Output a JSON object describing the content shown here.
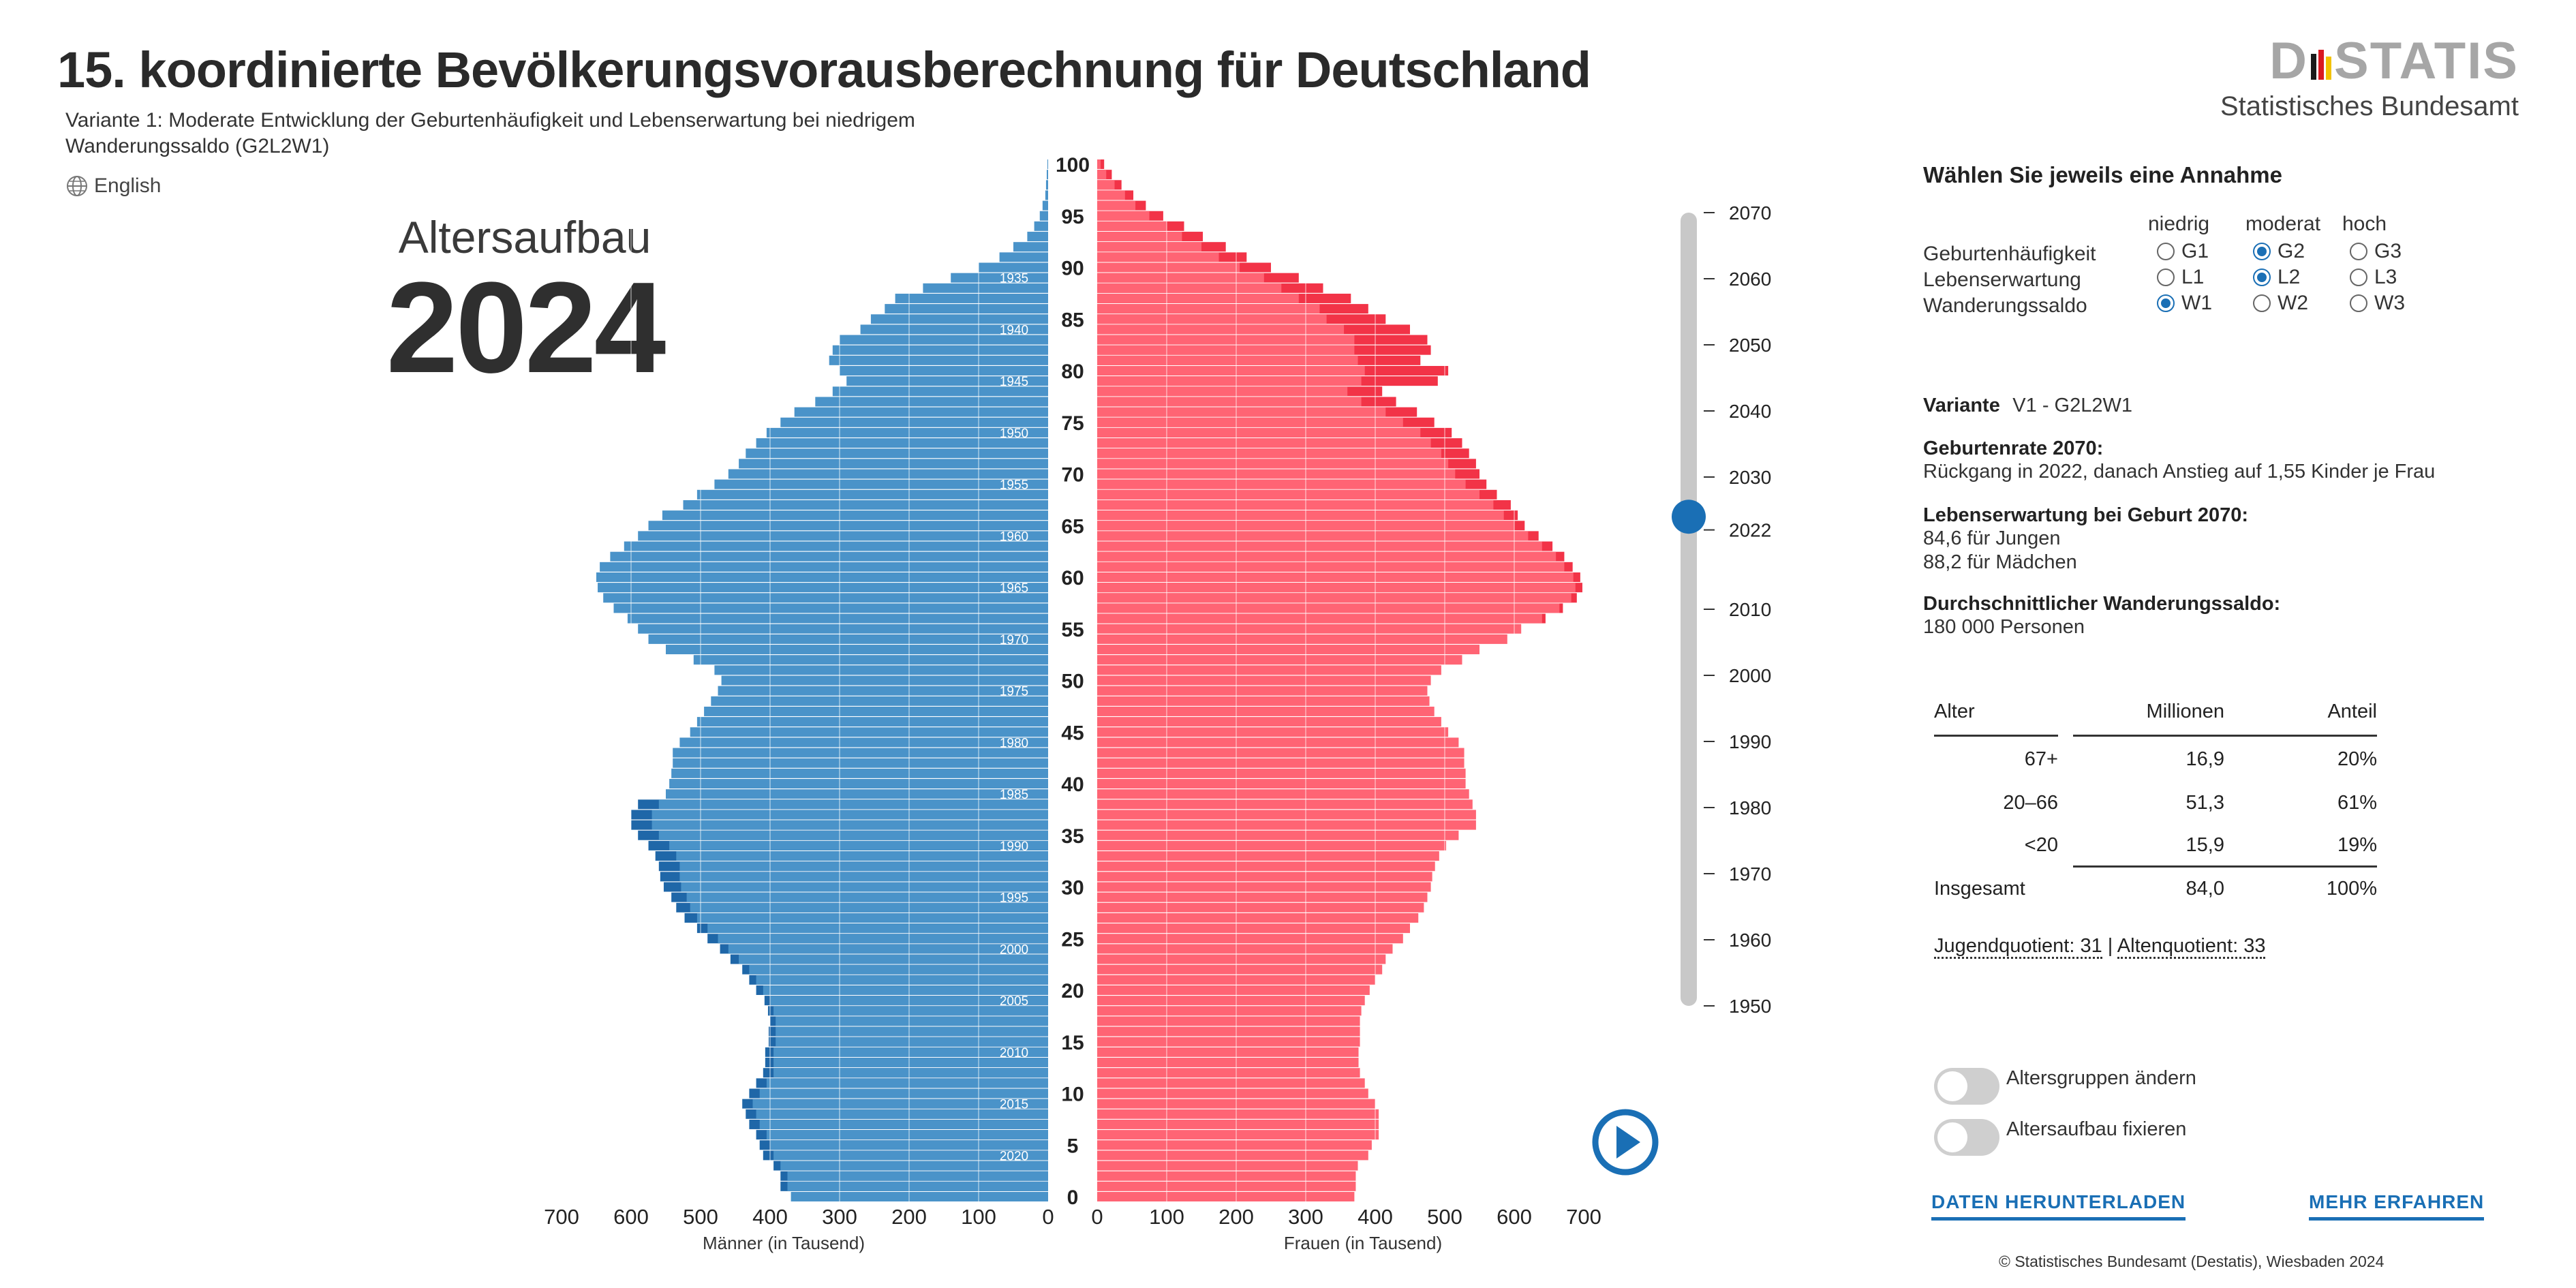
{
  "title": "15. koordinierte Bevölkerungsvorausberechnung für Deutschland",
  "subtitle": "Variante 1: Moderate Entwicklung der Geburtenhäufigkeit und Lebenserwartung bei niedrigem Wanderungssaldo (G2L2W1)",
  "language_link": "English",
  "logo": {
    "text_left": "D",
    "text_right": "STATIS",
    "subtitle": "Statistisches Bundesamt"
  },
  "heading": {
    "label": "Altersaufbau",
    "year": "2024"
  },
  "chart_data": {
    "type": "population-pyramid",
    "year": 2024,
    "x_unit": "Tausend",
    "xlim": [
      0,
      700
    ],
    "x_ticks": [
      700,
      600,
      500,
      400,
      300,
      200,
      100,
      0
    ],
    "x_tick_labels_left": [
      "700",
      "600",
      "500",
      "400",
      "300",
      "200",
      "100",
      "0"
    ],
    "x_tick_labels_right": [
      "0",
      "100",
      "200",
      "300",
      "400",
      "500",
      "600",
      "700"
    ],
    "age_ticks": [
      0,
      5,
      10,
      15,
      20,
      25,
      30,
      35,
      40,
      45,
      50,
      55,
      60,
      65,
      70,
      75,
      80,
      85,
      90,
      95,
      100
    ],
    "age_tick_labels": [
      "0",
      "5",
      "10",
      "15",
      "20",
      "25",
      "30",
      "35",
      "40",
      "45",
      "50",
      "55",
      "60",
      "65",
      "70",
      "75",
      "80",
      "85",
      "90",
      "95",
      "100"
    ],
    "cohort_labels": [
      {
        "age": 4,
        "year": "2020"
      },
      {
        "age": 9,
        "year": "2015"
      },
      {
        "age": 14,
        "year": "2010"
      },
      {
        "age": 19,
        "year": "2005"
      },
      {
        "age": 24,
        "year": "2000"
      },
      {
        "age": 29,
        "year": "1995"
      },
      {
        "age": 34,
        "year": "1990"
      },
      {
        "age": 39,
        "year": "1985"
      },
      {
        "age": 44,
        "year": "1980"
      },
      {
        "age": 49,
        "year": "1975"
      },
      {
        "age": 54,
        "year": "1970"
      },
      {
        "age": 59,
        "year": "1965"
      },
      {
        "age": 64,
        "year": "1960"
      },
      {
        "age": 69,
        "year": "1955"
      },
      {
        "age": 74,
        "year": "1950"
      },
      {
        "age": 79,
        "year": "1945"
      },
      {
        "age": 84,
        "year": "1940"
      },
      {
        "age": 89,
        "year": "1935"
      }
    ],
    "x_labels": {
      "men": "Männer (in Tausend)",
      "women": "Frauen (in Tausend)"
    },
    "ages": [
      0,
      1,
      2,
      3,
      4,
      5,
      6,
      7,
      8,
      9,
      10,
      11,
      12,
      13,
      14,
      15,
      16,
      17,
      18,
      19,
      20,
      21,
      22,
      23,
      24,
      25,
      26,
      27,
      28,
      29,
      30,
      31,
      32,
      33,
      34,
      35,
      36,
      37,
      38,
      39,
      40,
      41,
      42,
      43,
      44,
      45,
      46,
      47,
      48,
      49,
      50,
      51,
      52,
      53,
      54,
      55,
      56,
      57,
      58,
      59,
      60,
      61,
      62,
      63,
      64,
      65,
      66,
      67,
      68,
      69,
      70,
      71,
      72,
      73,
      74,
      75,
      76,
      77,
      78,
      79,
      80,
      81,
      82,
      83,
      84,
      85,
      86,
      87,
      88,
      89,
      90,
      91,
      92,
      93,
      94,
      95,
      96,
      97,
      98,
      99,
      100
    ],
    "men": [
      370,
      375,
      375,
      385,
      395,
      400,
      405,
      415,
      420,
      425,
      415,
      405,
      395,
      395,
      395,
      392,
      392,
      392,
      395,
      400,
      410,
      420,
      430,
      445,
      460,
      475,
      490,
      505,
      515,
      520,
      528,
      530,
      530,
      535,
      545,
      560,
      570,
      570,
      560,
      550,
      545,
      542,
      540,
      540,
      530,
      515,
      505,
      495,
      485,
      475,
      470,
      480,
      510,
      550,
      575,
      590,
      605,
      625,
      640,
      648,
      650,
      645,
      630,
      610,
      590,
      575,
      555,
      525,
      505,
      480,
      460,
      445,
      435,
      420,
      405,
      385,
      365,
      335,
      310,
      290,
      300,
      315,
      310,
      300,
      270,
      255,
      235,
      220,
      180,
      140,
      100,
      70,
      50,
      30,
      20,
      12,
      8,
      4,
      3,
      2,
      1
    ],
    "men_excess": [
      0,
      10,
      10,
      10,
      15,
      15,
      15,
      15,
      15,
      15,
      15,
      15,
      15,
      12,
      12,
      10,
      10,
      8,
      8,
      8,
      10,
      10,
      10,
      12,
      12,
      15,
      15,
      18,
      20,
      22,
      25,
      28,
      30,
      30,
      30,
      30,
      30,
      30,
      30,
      0,
      0,
      0,
      0,
      0,
      0,
      0,
      0,
      0,
      0,
      0,
      0,
      0,
      0,
      0,
      0,
      0,
      0,
      0,
      0,
      0,
      0,
      0,
      0,
      0,
      0,
      0,
      0,
      0,
      0,
      0,
      0,
      0,
      0,
      0,
      0,
      0,
      0,
      0,
      0,
      0,
      0,
      0,
      0,
      0,
      0,
      0,
      0,
      0,
      0,
      0,
      0,
      0,
      0,
      0,
      0,
      0,
      0,
      0,
      0,
      0,
      0
    ],
    "women": [
      370,
      372,
      372,
      375,
      390,
      395,
      405,
      405,
      405,
      400,
      390,
      385,
      378,
      376,
      376,
      378,
      378,
      378,
      380,
      385,
      392,
      400,
      410,
      415,
      425,
      440,
      450,
      462,
      470,
      475,
      480,
      482,
      486,
      492,
      502,
      520,
      545,
      545,
      540,
      535,
      530,
      530,
      528,
      528,
      520,
      505,
      495,
      485,
      478,
      475,
      480,
      495,
      525,
      550,
      590,
      610,
      640,
      665,
      682,
      688,
      685,
      672,
      660,
      640,
      620,
      600,
      585,
      570,
      550,
      530,
      515,
      505,
      495,
      480,
      465,
      440,
      415,
      380,
      360,
      380,
      385,
      375,
      370,
      370,
      355,
      330,
      320,
      290,
      265,
      240,
      205,
      175,
      150,
      122,
      100,
      75,
      55,
      40,
      25,
      13,
      5
    ],
    "women_excess": [
      0,
      0,
      0,
      0,
      0,
      0,
      0,
      0,
      0,
      0,
      0,
      0,
      0,
      0,
      0,
      0,
      0,
      0,
      0,
      0,
      0,
      0,
      0,
      0,
      0,
      0,
      0,
      0,
      0,
      0,
      0,
      0,
      0,
      0,
      0,
      0,
      0,
      0,
      0,
      0,
      0,
      0,
      0,
      0,
      0,
      0,
      0,
      0,
      0,
      0,
      0,
      0,
      0,
      0,
      0,
      0,
      5,
      5,
      8,
      10,
      10,
      12,
      12,
      15,
      15,
      15,
      20,
      25,
      25,
      30,
      35,
      40,
      40,
      45,
      45,
      45,
      45,
      50,
      50,
      110,
      120,
      90,
      110,
      105,
      95,
      85,
      70,
      75,
      60,
      50,
      45,
      40,
      35,
      30,
      25,
      20,
      15,
      12,
      10,
      8,
      5
    ]
  },
  "timeline": {
    "years": [
      "1950",
      "1960",
      "1970",
      "1980",
      "1990",
      "2000",
      "2010",
      "2022",
      "2030",
      "2040",
      "2050",
      "2060",
      "2070"
    ],
    "year_values": [
      1950,
      1960,
      1970,
      1980,
      1990,
      2000,
      2010,
      2022,
      2030,
      2040,
      2050,
      2060,
      2070
    ],
    "min": 1950,
    "max": 2070,
    "current": 2024
  },
  "assumptions": {
    "heading": "Wählen Sie jeweils eine Annahme",
    "columns": [
      "niedrig",
      "moderat",
      "hoch"
    ],
    "rows": [
      {
        "label": "Geburtenhäufigkeit",
        "options": [
          "G1",
          "G2",
          "G3"
        ],
        "selected": 1
      },
      {
        "label": "Lebenserwartung",
        "options": [
          "L1",
          "L2",
          "L3"
        ],
        "selected": 1
      },
      {
        "label": "Wanderungssaldo",
        "options": [
          "W1",
          "W2",
          "W3"
        ],
        "selected": 0
      }
    ]
  },
  "variant": {
    "label": "Variante",
    "value": "V1 - G2L2W1"
  },
  "info": [
    {
      "title": "Geburtenrate 2070:",
      "lines": [
        "Rückgang in 2022, danach Anstieg auf 1,55 Kinder je Frau"
      ]
    },
    {
      "title": "Lebenserwartung bei Geburt 2070:",
      "lines": [
        "84,6 für Jungen",
        "88,2 für Mädchen"
      ]
    },
    {
      "title": "Durchschnittlicher Wanderungssaldo:",
      "lines": [
        "180 000 Personen"
      ]
    }
  ],
  "table": {
    "headers": [
      "Alter",
      "Millionen",
      "Anteil"
    ],
    "rows": [
      [
        "67+",
        "16,9",
        "20%"
      ],
      [
        "20–66",
        "51,3",
        "61%"
      ],
      [
        "<20",
        "15,9",
        "19%"
      ]
    ],
    "total": [
      "Insgesamt",
      "84,0",
      "100%"
    ]
  },
  "quotients": {
    "jugend": "Jugendquotient: 31",
    "separator": "|",
    "alten": "Altenquotient: 33"
  },
  "toggles": [
    {
      "label": "Altersgruppen ändern"
    },
    {
      "label": "Altersaufbau fixieren"
    }
  ],
  "links": {
    "download": "DATEN HERUNTERLADEN",
    "more": "MEHR ERFAHREN"
  },
  "footer": "© Statistisches Bundesamt (Destatis), Wiesbaden 2024",
  "colors": {
    "men": "#4a93c9",
    "men_dark": "#1f67a8",
    "women": "#ff6474",
    "women_dark": "#f23347",
    "accent": "#1a6fb5",
    "slider_track": "#c8c8c8"
  }
}
